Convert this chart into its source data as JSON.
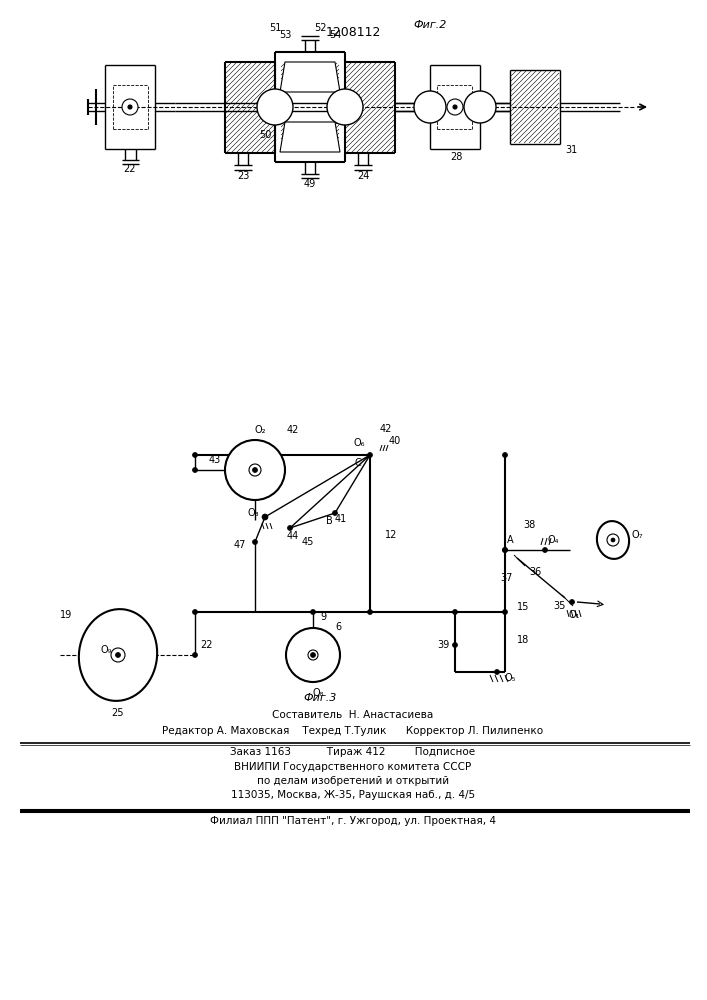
{
  "title": "1208112",
  "fig2_label": "Фиг.2",
  "fig3_label": "Фиг.3",
  "footer_line1": "Составитель  Н. Анастасиева",
  "footer_line2": "Редактор А. Маховская    Техред Т.Тулик      Корректор Л. Пилипенко",
  "footer_line3": "Заказ 1163           Тираж 412         Подписное",
  "footer_line4": "ВНИИПИ Государственного комитета СССР",
  "footer_line5": "по делам изобретений и открытий",
  "footer_line6": "113035, Москва, Ж-35, Раушская наб., д. 4/5",
  "footer_line7": "Филиал ППП \"Патент\", г. Ужгород, ул. Проектная, 4",
  "bg_color": "#ffffff",
  "line_color": "#000000"
}
